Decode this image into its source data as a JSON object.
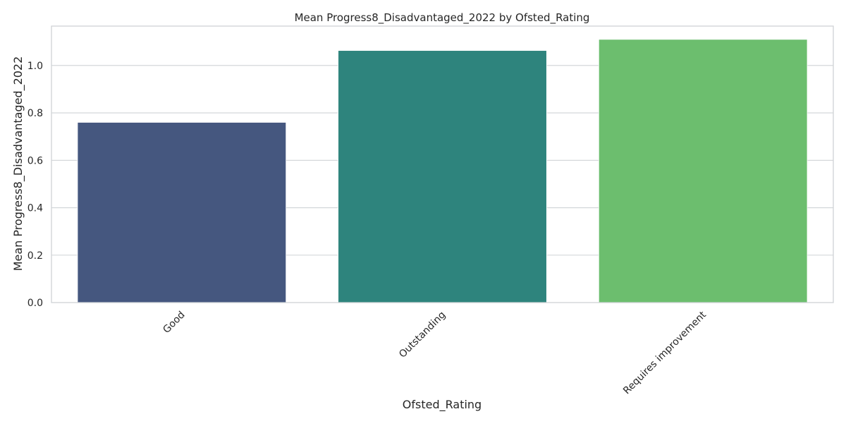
{
  "chart_data": {
    "type": "bar",
    "title": "Mean Progress8_Disadvantaged_2022 by Ofsted_Rating",
    "xlabel": "Ofsted_Rating",
    "ylabel": "Mean Progress8_Disadvantaged_2022",
    "categories": [
      "Good",
      "Outstanding",
      "Requires improvement"
    ],
    "values": [
      0.76,
      1.063,
      1.11
    ],
    "colors": [
      "#45577f",
      "#2e847d",
      "#6cbe6e"
    ],
    "ylim": [
      0,
      1.166
    ],
    "yticks": [
      0.0,
      0.2,
      0.4,
      0.6,
      0.8,
      1.0
    ],
    "ytick_labels": [
      "0.0",
      "0.2",
      "0.4",
      "0.6",
      "0.8",
      "1.0"
    ],
    "grid": true,
    "xtick_rotation_deg": 45
  }
}
